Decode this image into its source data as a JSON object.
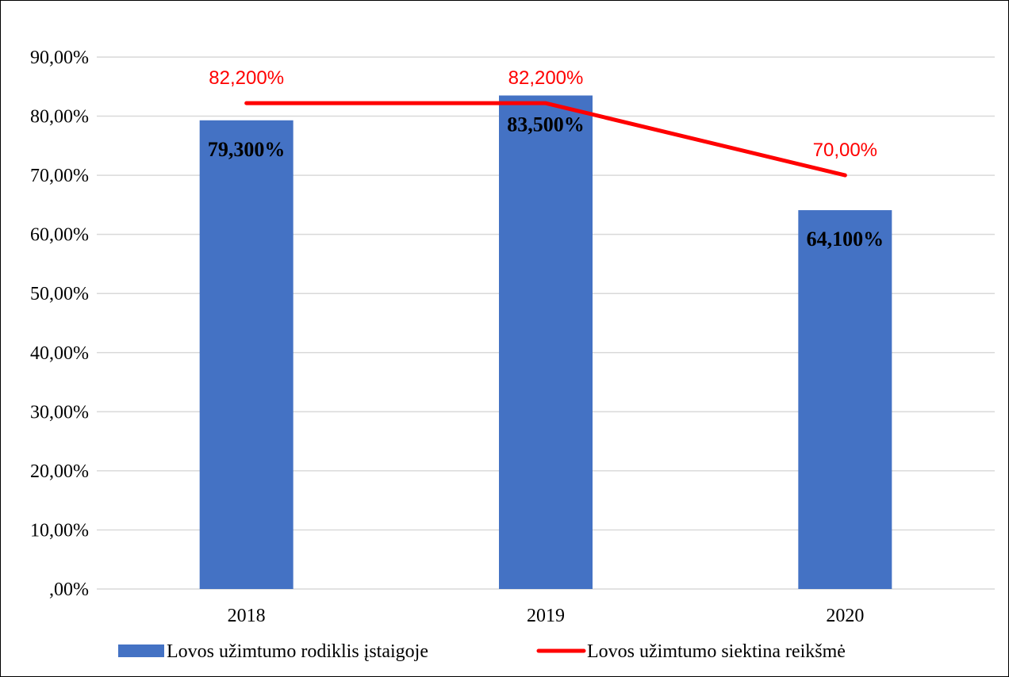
{
  "chart_data": {
    "type": "bar",
    "categories": [
      "2018",
      "2019",
      "2020"
    ],
    "ylim": [
      0,
      90
    ],
    "yticks": [
      ",00%",
      "10,00%",
      "20,00%",
      "30,00%",
      "40,00%",
      "50,00%",
      "60,00%",
      "70,00%",
      "80,00%",
      "90,00%"
    ],
    "grid": true,
    "legend_position": "bottom",
    "series": [
      {
        "name": "Lovos užimtumo rodiklis įstaigoje",
        "type": "bar",
        "color": "#4472c4",
        "values": [
          79.3,
          83.5,
          64.1
        ],
        "labels": [
          "79,300%",
          "83,500%",
          "64,100%"
        ]
      },
      {
        "name": "Lovos užimtumo siektina reikšmė",
        "type": "line",
        "color": "#ff0000",
        "values": [
          82.2,
          82.2,
          70.0
        ],
        "labels": [
          "82,200%",
          "82,200%",
          "70,00%"
        ]
      }
    ]
  }
}
